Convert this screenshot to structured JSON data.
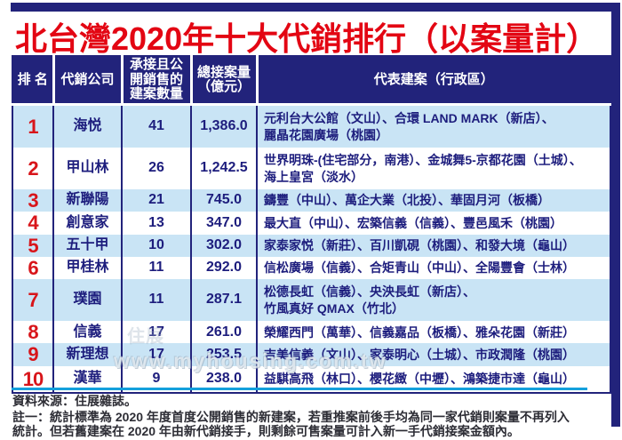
{
  "title": "北台灣2020年十大代銷排行（以案量計）",
  "colors": {
    "navy": "#22237b",
    "title_red": "#e30613",
    "rank_red": "#d8151a",
    "row_blue": "#c9e4f5",
    "separator_blue": "#14a0dc",
    "cell_text": "#1d1d7d"
  },
  "watermark": {
    "logo_text": "住展",
    "url_text": "www.myhousing.com.tw"
  },
  "table": {
    "headers": {
      "rank": "排 名",
      "company": "代銷公司",
      "count": "承接且公\n開銷售的\n建案數量",
      "volume": "總接案量\n（億元）",
      "projects": "代表建案（行政區）"
    },
    "rows": [
      {
        "rank": "1",
        "company": "海悦",
        "count": "41",
        "volume": "1,386.0",
        "projects": "元利台大公館（文山）、合環 LAND MARK（新店）、\n麗晶花園廣場（桃園）"
      },
      {
        "rank": "2",
        "company": "甲山林",
        "count": "26",
        "volume": "1,242.5",
        "projects": "世界明珠-(住宅部分，南港）、金城舞5-京都花園（土城）、\n海上皇宮（淡水）"
      },
      {
        "rank": "3",
        "company": "新聯陽",
        "count": "21",
        "volume": "745.0",
        "projects": "鑄豐（中山）、萬企大業（北投）、華固月河（板橋）"
      },
      {
        "rank": "4",
        "company": "創意家",
        "count": "13",
        "volume": "347.0",
        "projects": "最大直（中山）、宏築信義（信義）、豐邑風禾（桃園）"
      },
      {
        "rank": "5",
        "company": "五十甲",
        "count": "10",
        "volume": "302.0",
        "projects": "家泰家悦（新莊）、百川凱硯（桃園）、和發大境（龜山）"
      },
      {
        "rank": "6",
        "company": "甲桂林",
        "count": "11",
        "volume": "292.0",
        "projects": "信松廣場（信義）、合矩青山（中山）、全陽豐會（士林）"
      },
      {
        "rank": "7",
        "company": "璞園",
        "count": "11",
        "volume": "287.1",
        "projects": "松德長虹（信義）、央泱長虹（新店）、\n竹風真好 QMAX（竹北）"
      },
      {
        "rank": "8",
        "company": "信義",
        "count": "17",
        "volume": "261.0",
        "projects": "榮耀西門（萬華）、信義嘉品（板橋）、雅朵花園（新莊）"
      },
      {
        "rank": "9",
        "company": "新理想",
        "count": "17",
        "volume": "253.5",
        "projects": "吉美信義（文山）、家泰明心（土城）、市政潤隆（桃園）"
      },
      {
        "rank": "10",
        "company": "漢華",
        "count": "9",
        "volume": "238.0",
        "projects": "益騏高飛（林口）、櫻花緻（中壢）、鴻築捷市達（龜山）"
      }
    ]
  },
  "footer": {
    "source": "資料來源：住展雜誌。",
    "note": "註一：統計標準為 2020 年度首度公開銷售的新建案，若重推案前後手均為同一家代銷則案量不再列入\n統計。但若舊建案在 2020 年由新代銷接手，則剩餘可售案量可計入新一手代銷接案金額內。"
  },
  "chart_data": {
    "type": "table",
    "title": "北台灣2020年十大代銷排行（以案量計）",
    "columns": [
      "排名",
      "代銷公司",
      "承接且公開銷售的建案數量",
      "總接案量（億元）",
      "代表建案（行政區）"
    ],
    "rows": [
      [
        1,
        "海悦",
        41,
        1386.0,
        "元利台大公館（文山）、合環 LAND MARK（新店）、麗晶花園廣場（桃園）"
      ],
      [
        2,
        "甲山林",
        26,
        1242.5,
        "世界明珠-(住宅部分，南港）、金城舞5-京都花園（土城）、海上皇宮（淡水）"
      ],
      [
        3,
        "新聯陽",
        21,
        745.0,
        "鑄豐（中山）、萬企大業（北投）、華固月河（板橋）"
      ],
      [
        4,
        "創意家",
        13,
        347.0,
        "最大直（中山）、宏築信義（信義）、豐邑風禾（桃園）"
      ],
      [
        5,
        "五十甲",
        10,
        302.0,
        "家泰家悦（新莊）、百川凱硯（桃園）、和發大境（龜山）"
      ],
      [
        6,
        "甲桂林",
        11,
        292.0,
        "信松廣場（信義）、合矩青山（中山）、全陽豐會（士林）"
      ],
      [
        7,
        "璞園",
        11,
        287.1,
        "松德長虹（信義）、央泱長虹（新店）、竹風真好 QMAX（竹北）"
      ],
      [
        8,
        "信義",
        17,
        261.0,
        "榮耀西門（萬華）、信義嘉品（板橋）、雅朵花園（新莊）"
      ],
      [
        9,
        "新理想",
        17,
        253.5,
        "吉美信義（文山）、家泰明心（土城）、市政潤隆（桃園）"
      ],
      [
        10,
        "漢華",
        9,
        238.0,
        "益騏高飛（林口）、櫻花緻（中壢）、鴻築捷市達（龜山）"
      ]
    ]
  }
}
